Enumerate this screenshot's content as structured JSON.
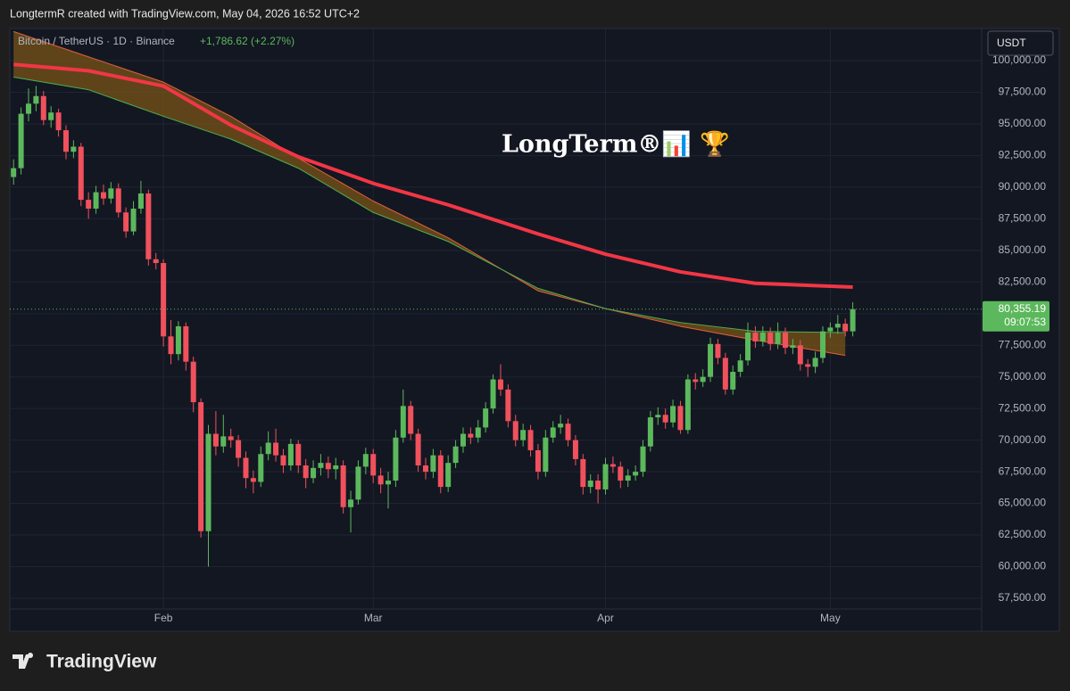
{
  "header": {
    "text": "LongtermR created with TradingView.com, May 04, 2026 16:52 UTC+2"
  },
  "footer": {
    "brand": "TradingView"
  },
  "chart_data": {
    "type": "candlestick",
    "title": "Bitcoin / TetherUS · 1D · Binance",
    "change": "+1,786.62 (+2.27%)",
    "currency": "USDT",
    "watermark": "LongTerm®📊 🏆",
    "last_price": {
      "value": 80355.19,
      "label": "80,355.19"
    },
    "countdown": "09:07:53",
    "up_color": "#5cb85c",
    "down_color": "#f0515c",
    "grid": true,
    "xlim": [
      10.5,
      140.2
    ],
    "xticks": [
      {
        "value": 31,
        "label": "Feb"
      },
      {
        "value": 59,
        "label": "Mar"
      },
      {
        "value": 90,
        "label": "Apr"
      },
      {
        "value": 120,
        "label": "May"
      }
    ],
    "ylim": [
      55100,
      102540
    ],
    "yticks": [
      {
        "value": 57500,
        "label": "57,500.00"
      },
      {
        "value": 60000,
        "label": "60,000.00"
      },
      {
        "value": 62500,
        "label": "62,500.00"
      },
      {
        "value": 65000,
        "label": "65,000.00"
      },
      {
        "value": 67500,
        "label": "67,500.00"
      },
      {
        "value": 70000,
        "label": "70,000.00"
      },
      {
        "value": 72500,
        "label": "72,500.00"
      },
      {
        "value": 75000,
        "label": "75,000.00"
      },
      {
        "value": 77500,
        "label": "77,500.00"
      },
      {
        "value": 80000,
        "label": "80,000.00"
      },
      {
        "value": 82500,
        "label": "82,500.00"
      },
      {
        "value": 85000,
        "label": "85,000.00"
      },
      {
        "value": 87500,
        "label": "87,500.00"
      },
      {
        "value": 90000,
        "label": "90,000.00"
      },
      {
        "value": 92500,
        "label": "92,500.00"
      },
      {
        "value": 95000,
        "label": "95,000.00"
      },
      {
        "value": 97500,
        "label": "97,500.00"
      },
      {
        "value": 100000,
        "label": "100,000.00"
      }
    ],
    "x": [
      11,
      12,
      13,
      14,
      15,
      16,
      17,
      18,
      19,
      20,
      21,
      22,
      23,
      24,
      25,
      26,
      27,
      28,
      29,
      30,
      31,
      32,
      33,
      34,
      35,
      36,
      37,
      38,
      39,
      40,
      41,
      42,
      43,
      44,
      45,
      46,
      47,
      48,
      49,
      50,
      51,
      52,
      53,
      54,
      55,
      56,
      57,
      58,
      59,
      60,
      61,
      62,
      63,
      64,
      65,
      66,
      67,
      68,
      69,
      70,
      71,
      72,
      73,
      74,
      75,
      76,
      77,
      78,
      79,
      80,
      81,
      82,
      83,
      84,
      85,
      86,
      87,
      88,
      89,
      90,
      91,
      92,
      93,
      94,
      95,
      96,
      97,
      98,
      99,
      100,
      101,
      102,
      103,
      104,
      105,
      106,
      107,
      108,
      109,
      110,
      111,
      112,
      113,
      114,
      115,
      116,
      117,
      118,
      119,
      120,
      121,
      122,
      123
    ],
    "open": [
      90800,
      91500,
      95800,
      96600,
      97200,
      95300,
      95900,
      94500,
      92800,
      93200,
      89000,
      88300,
      89600,
      89100,
      89900,
      88000,
      86500,
      88300,
      89500,
      84300,
      84000,
      78200,
      76800,
      79000,
      76200,
      73000,
      62800,
      70500,
      69500,
      70300,
      70000,
      68600,
      67000,
      66700,
      68900,
      69800,
      68800,
      68000,
      69700,
      68000,
      67000,
      67800,
      68200,
      67700,
      68000,
      64700,
      65300,
      67900,
      68900,
      67200,
      66500,
      66800,
      70200,
      72700,
      70500,
      68000,
      67500,
      68800,
      66300,
      68200,
      69500,
      70500,
      70200,
      71000,
      72500,
      74800,
      74000,
      71500,
      70000,
      70800,
      69200,
      67500,
      70200,
      71000,
      71300,
      70000,
      68500,
      66300,
      66800,
      66100,
      68100,
      67900,
      66800,
      67200,
      67500,
      69500,
      71800,
      72000,
      71400,
      72700,
      70800,
      74800,
      74600,
      75000,
      77600,
      76500,
      74000,
      75400,
      76300,
      78500,
      77800,
      78500,
      77600,
      78500,
      77300,
      77500,
      76000,
      75800,
      76500,
      78600,
      78900,
      79200,
      78600
    ],
    "high": [
      92200,
      96300,
      97800,
      98000,
      97600,
      96400,
      96200,
      94900,
      93700,
      93500,
      89600,
      90100,
      90200,
      90400,
      90300,
      88400,
      88900,
      90500,
      89800,
      84800,
      84300,
      79500,
      79400,
      79300,
      76600,
      73300,
      71200,
      72300,
      72000,
      70900,
      70400,
      69100,
      67600,
      69500,
      70700,
      70900,
      69300,
      70100,
      70000,
      68500,
      68400,
      68900,
      68700,
      68600,
      68400,
      66000,
      68400,
      69400,
      69300,
      67800,
      67500,
      70800,
      74000,
      73100,
      70900,
      68600,
      69300,
      69200,
      68800,
      70000,
      71000,
      71000,
      71600,
      73000,
      75200,
      76000,
      74400,
      72000,
      71300,
      71200,
      69700,
      70800,
      71500,
      72000,
      71700,
      70400,
      68900,
      67300,
      67300,
      68600,
      68700,
      68300,
      67700,
      68000,
      70000,
      72300,
      72600,
      72500,
      73200,
      73100,
      75200,
      75300,
      75600,
      78100,
      78000,
      76900,
      75900,
      76800,
      79300,
      79000,
      79000,
      78900,
      79300,
      78900,
      78000,
      77900,
      76400,
      77000,
      79000,
      79300,
      79900,
      79600,
      80900
    ],
    "low": [
      90200,
      91000,
      95200,
      96000,
      94900,
      94700,
      94000,
      92200,
      92300,
      88500,
      87500,
      87900,
      88600,
      88700,
      87600,
      86000,
      86200,
      87900,
      83800,
      83500,
      77400,
      76000,
      76300,
      75500,
      72200,
      62300,
      60000,
      68800,
      69000,
      69400,
      67900,
      66200,
      65800,
      66300,
      68400,
      68300,
      67400,
      67600,
      67400,
      66200,
      66600,
      67200,
      67000,
      66900,
      64200,
      62700,
      64900,
      67300,
      66600,
      65800,
      64600,
      66300,
      69800,
      70000,
      67500,
      66900,
      67000,
      65800,
      65900,
      67800,
      69000,
      69700,
      69800,
      70600,
      72100,
      73500,
      71000,
      69500,
      69500,
      68700,
      66900,
      67100,
      69800,
      70500,
      69500,
      68000,
      65700,
      65800,
      65000,
      65700,
      67400,
      66200,
      66300,
      66800,
      67100,
      69100,
      71200,
      70900,
      71000,
      70500,
      70500,
      74000,
      74200,
      74600,
      76000,
      73600,
      73600,
      75000,
      75900,
      77300,
      77400,
      77100,
      77200,
      76800,
      76800,
      75500,
      75000,
      75300,
      76100,
      78100,
      78400,
      78200,
      78200
    ],
    "close": [
      91500,
      95800,
      96600,
      97200,
      95300,
      95900,
      94500,
      92800,
      93200,
      89000,
      88300,
      89600,
      89100,
      89900,
      88000,
      86500,
      88300,
      89500,
      84300,
      84000,
      78200,
      76800,
      79000,
      76200,
      73000,
      62800,
      70500,
      69500,
      70300,
      70000,
      68600,
      67000,
      66700,
      68900,
      69800,
      68800,
      68000,
      69700,
      68000,
      67000,
      67800,
      68200,
      67700,
      68000,
      64700,
      65300,
      67900,
      68900,
      67200,
      66500,
      66800,
      70200,
      72700,
      70500,
      68000,
      67500,
      68800,
      66300,
      68200,
      69500,
      70500,
      70200,
      71000,
      72500,
      74800,
      74000,
      71500,
      70000,
      70800,
      69200,
      67500,
      70200,
      71000,
      71300,
      70000,
      68500,
      66300,
      66800,
      66100,
      68100,
      67900,
      66800,
      67200,
      67500,
      69500,
      71800,
      72000,
      71400,
      72700,
      70800,
      74800,
      74600,
      75000,
      77600,
      76500,
      74000,
      75400,
      76300,
      78500,
      77800,
      78500,
      77600,
      78500,
      77300,
      77500,
      76000,
      75800,
      76500,
      78600,
      78900,
      79200,
      78600,
      80355.19
    ],
    "lines": [
      {
        "color": "#f23645",
        "width": 4,
        "x": [
          11,
          21,
          31,
          40,
          49,
          59,
          69,
          81,
          90,
          100,
          110,
          123
        ],
        "values": [
          99700,
          99200,
          98000,
          94900,
          92400,
          90300,
          88600,
          86300,
          84700,
          83300,
          82400,
          82100
        ]
      },
      {
        "color": "#e0603a",
        "width": 1,
        "x": [
          11,
          21,
          31,
          40,
          49,
          59,
          69,
          81,
          90,
          100,
          110,
          122
        ],
        "values": [
          102300,
          100300,
          98300,
          95600,
          92300,
          88900,
          86000,
          81800,
          80400,
          79000,
          77900,
          76700
        ]
      },
      {
        "color": "#4caf50",
        "width": 1,
        "x": [
          11,
          21,
          31,
          40,
          49,
          59,
          69,
          81,
          90,
          100,
          110,
          122
        ],
        "values": [
          98700,
          97700,
          95600,
          93800,
          91500,
          88000,
          85700,
          82000,
          80400,
          79300,
          78600,
          78500
        ]
      }
    ],
    "band_color": "#7a5418"
  }
}
